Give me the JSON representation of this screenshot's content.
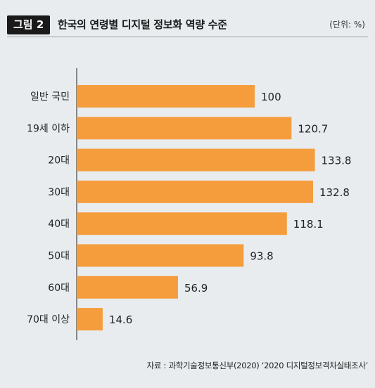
{
  "header": {
    "figure_label": "그림 2",
    "title": "한국의 연령별 디지털 정보화 역량 수준",
    "unit": "(단위: %)"
  },
  "source": "자료 : 과학기술정보통신부(2020) ‘2020 디지털정보격차실태조사’",
  "colors": {
    "bar": "#f59d3c",
    "axis": "#222222",
    "background": "#e8ecef"
  },
  "chart_data": {
    "type": "bar",
    "orientation": "horizontal",
    "categories": [
      "일반 국민",
      "19세 이하",
      "20대",
      "30대",
      "40대",
      "50대",
      "60대",
      "70대 이상"
    ],
    "values": [
      100,
      120.7,
      133.8,
      132.8,
      118.1,
      93.8,
      56.9,
      14.6
    ],
    "value_labels": [
      "100",
      "120.7",
      "133.8",
      "132.8",
      "118.1",
      "93.8",
      "56.9",
      "14.6"
    ],
    "xlim": [
      0,
      140
    ],
    "grid": false,
    "legend": "none"
  }
}
